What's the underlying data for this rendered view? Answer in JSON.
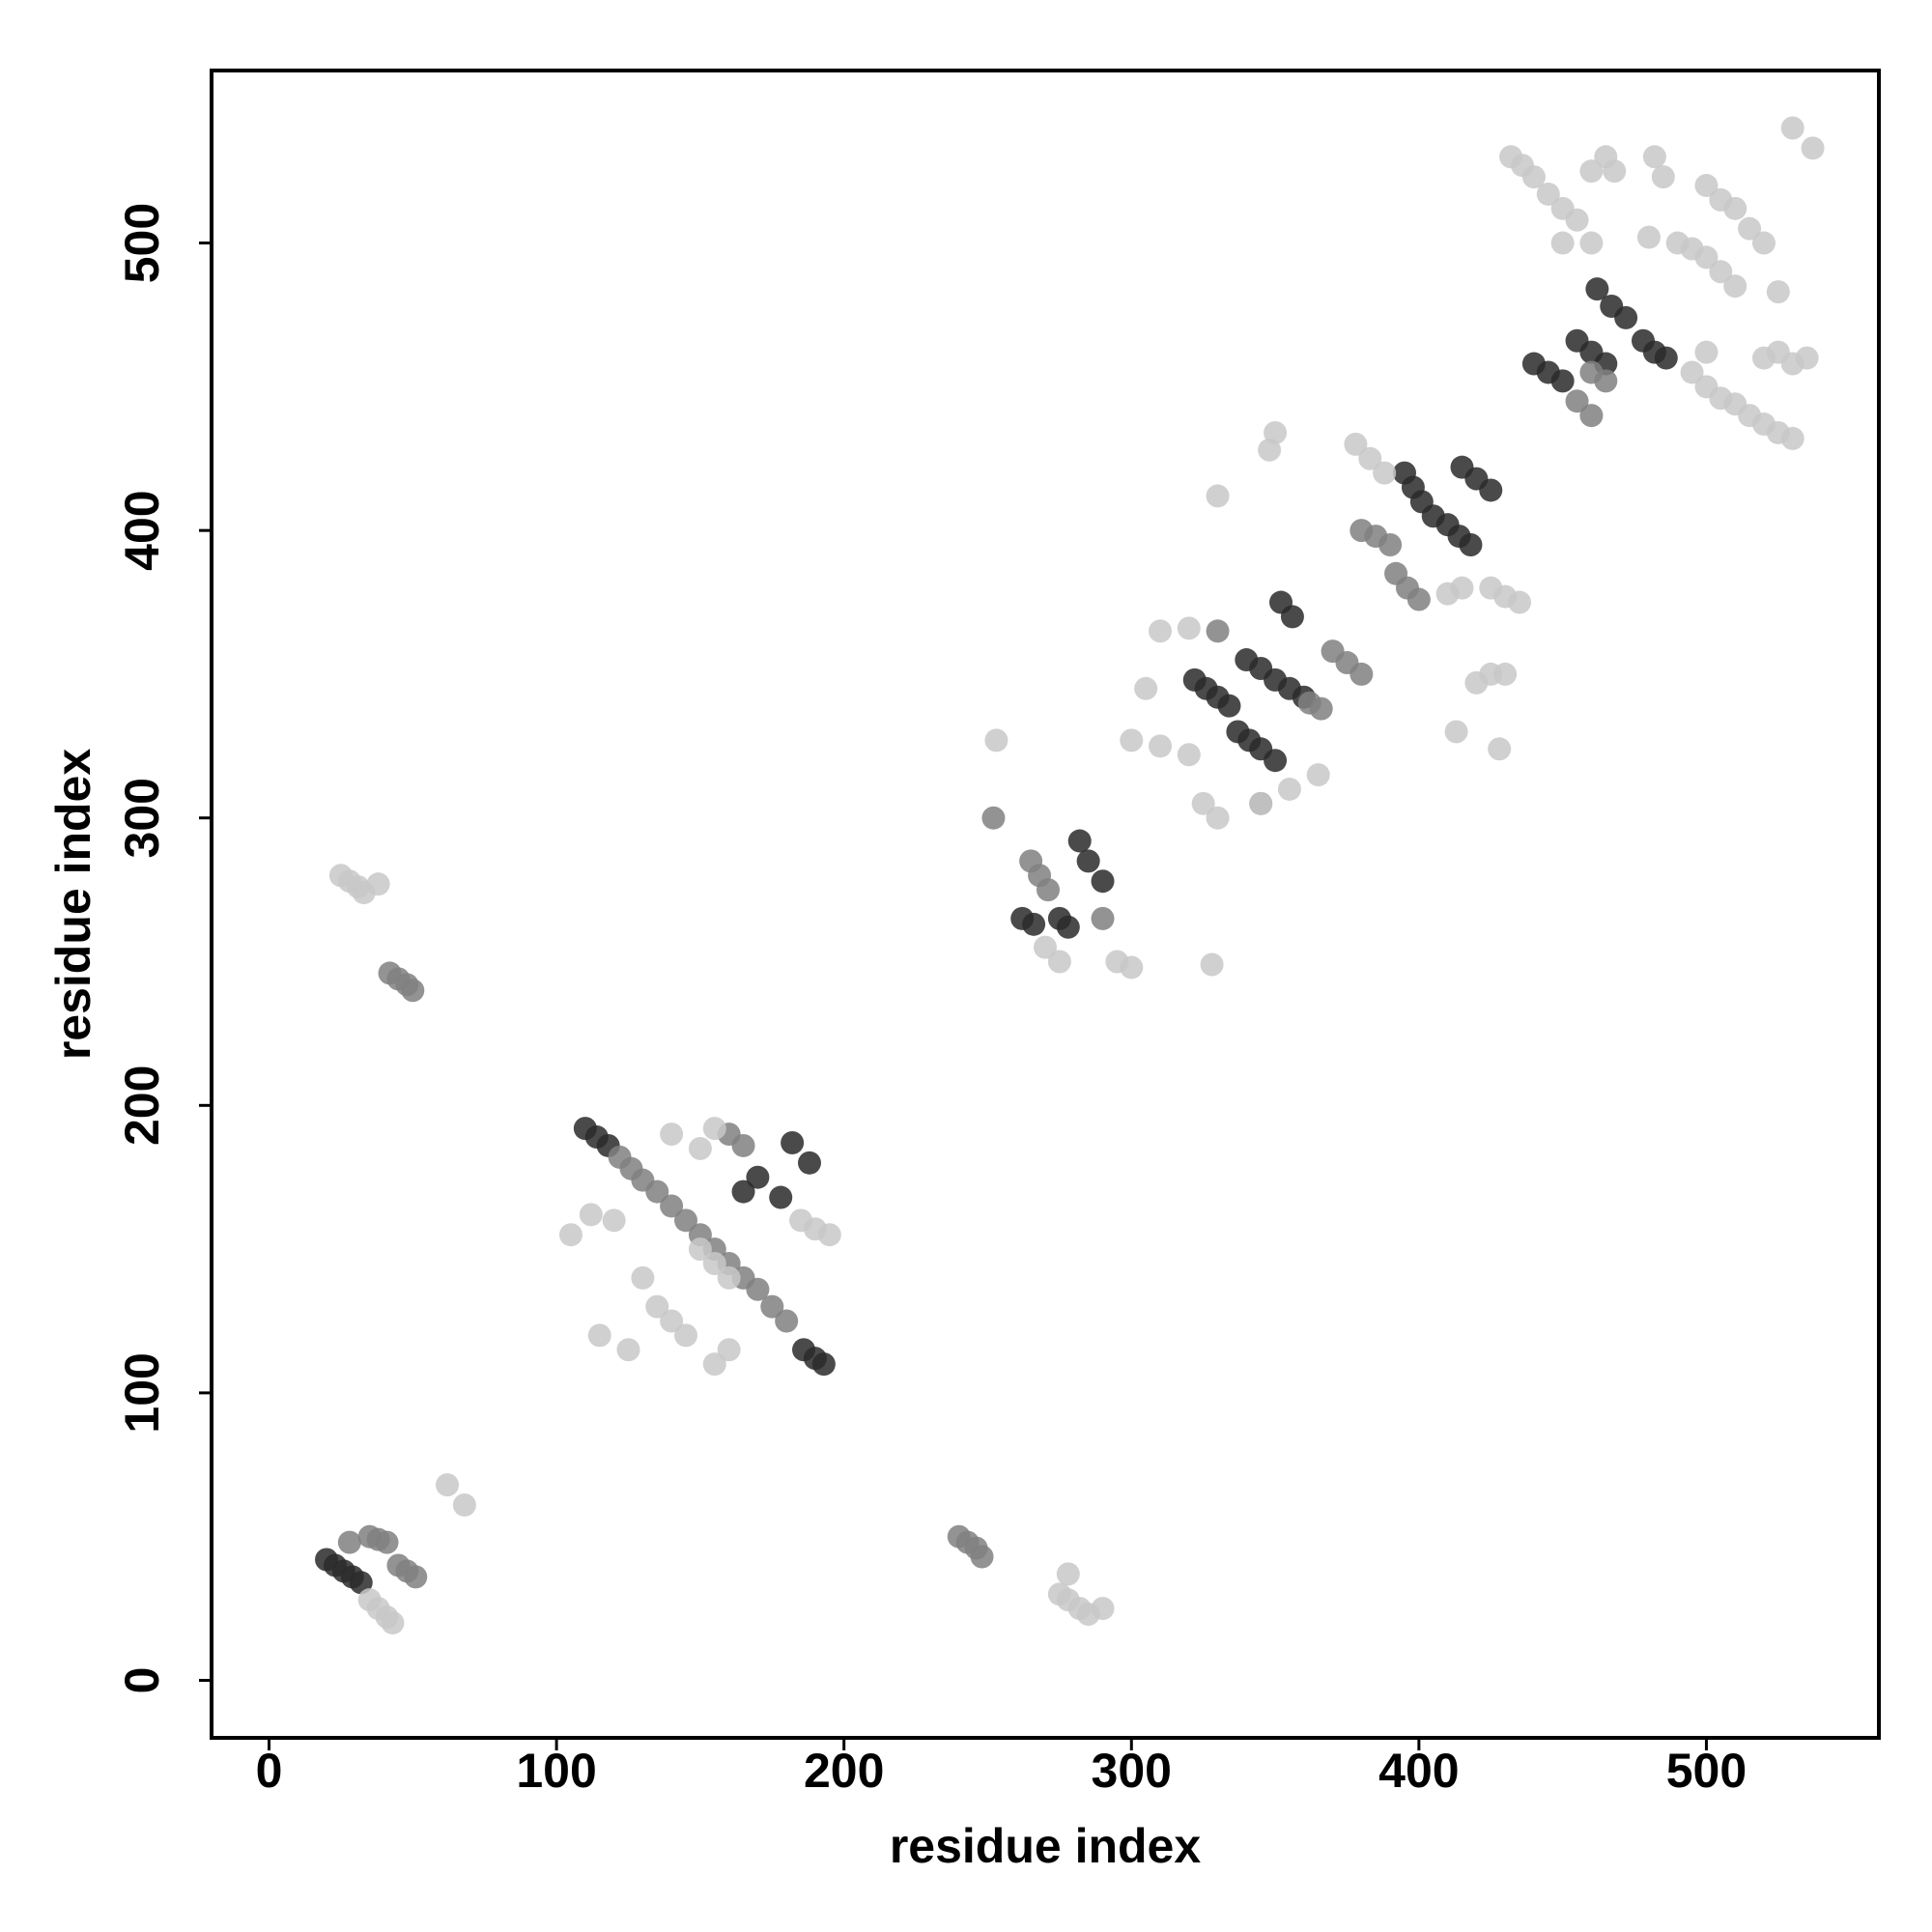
{
  "chart_data": {
    "type": "scatter",
    "xlabel": "residue index",
    "ylabel": "residue index",
    "xlim": [
      -20,
      560
    ],
    "ylim": [
      -20,
      560
    ],
    "xticks": [
      0,
      100,
      200,
      300,
      400,
      500
    ],
    "yticks": [
      0,
      100,
      200,
      300,
      400,
      500
    ],
    "series": [
      {
        "color": "#2a2a2a",
        "x": [
          20,
          23,
          26,
          29,
          32,
          110,
          114,
          118,
          186,
          190,
          193,
          165,
          170,
          178,
          182,
          188,
          262,
          266,
          275,
          278,
          282,
          285,
          290,
          322,
          326,
          330,
          334,
          337,
          341,
          345,
          350,
          340,
          345,
          350,
          355,
          360,
          352,
          356,
          395,
          398,
          401,
          405,
          410,
          414,
          418,
          415,
          420,
          425,
          440,
          445,
          450,
          455,
          460,
          465,
          462,
          467,
          472,
          478,
          482,
          486
        ],
        "y": [
          42,
          40,
          38,
          36,
          34,
          192,
          189,
          186,
          115,
          112,
          110,
          170,
          175,
          168,
          187,
          180,
          265,
          263,
          265,
          262,
          292,
          285,
          278,
          348,
          345,
          342,
          339,
          330,
          327,
          324,
          320,
          355,
          352,
          348,
          345,
          342,
          375,
          370,
          420,
          415,
          410,
          405,
          402,
          398,
          395,
          422,
          418,
          414,
          458,
          455,
          452,
          466,
          462,
          458,
          484,
          478,
          474,
          466,
          462,
          460
        ]
      },
      {
        "color": "#808080",
        "x": [
          35,
          38,
          41,
          45,
          48,
          51,
          28,
          42,
          45,
          48,
          50,
          122,
          126,
          130,
          135,
          140,
          145,
          150,
          155,
          160,
          165,
          170,
          175,
          180,
          160,
          165,
          240,
          243,
          246,
          248,
          252,
          265,
          268,
          271,
          290,
          362,
          366,
          370,
          375,
          380,
          330,
          345,
          380,
          385,
          390,
          392,
          396,
          400,
          455,
          460,
          460,
          465
        ],
        "y": [
          50,
          49,
          48,
          40,
          38,
          36,
          48,
          246,
          244,
          242,
          240,
          182,
          178,
          174,
          170,
          165,
          160,
          155,
          150,
          145,
          140,
          136,
          130,
          125,
          190,
          186,
          50,
          48,
          46,
          43,
          300,
          285,
          280,
          275,
          265,
          340,
          338,
          358,
          354,
          350,
          365,
          305,
          400,
          398,
          395,
          385,
          380,
          376,
          445,
          440,
          455,
          452
        ]
      },
      {
        "color": "#c8c8c8",
        "x": [
          35,
          38,
          41,
          43,
          25,
          28,
          31,
          33,
          38,
          62,
          68,
          120,
          115,
          125,
          130,
          135,
          140,
          145,
          150,
          155,
          160,
          155,
          160,
          140,
          150,
          155,
          185,
          190,
          195,
          105,
          112,
          275,
          278,
          282,
          285,
          278,
          290,
          270,
          275,
          295,
          300,
          253,
          310,
          320,
          305,
          300,
          310,
          320,
          325,
          330,
          345,
          355,
          365,
          328,
          330,
          348,
          350,
          378,
          383,
          388,
          425,
          430,
          435,
          420,
          425,
          430,
          413,
          428,
          410,
          415,
          432,
          436,
          440,
          445,
          450,
          455,
          460,
          465,
          468,
          450,
          460,
          482,
          485,
          490,
          495,
          500,
          505,
          510,
          480,
          500,
          505,
          510,
          515,
          520,
          500,
          505,
          510,
          515,
          520,
          525,
          530,
          520,
          525,
          530,
          535,
          530,
          537,
          525,
          495,
          500
        ],
        "y": [
          28,
          25,
          22,
          20,
          280,
          278,
          276,
          274,
          277,
          68,
          61,
          160,
          120,
          115,
          140,
          130,
          125,
          120,
          150,
          145,
          140,
          110,
          115,
          190,
          185,
          192,
          160,
          157,
          155,
          155,
          162,
          30,
          28,
          25,
          23,
          37,
          25,
          255,
          250,
          250,
          248,
          327,
          365,
          366,
          345,
          327,
          325,
          322,
          305,
          300,
          305,
          310,
          315,
          249,
          412,
          428,
          434,
          430,
          425,
          420,
          380,
          377,
          375,
          347,
          350,
          350,
          330,
          324,
          378,
          380,
          530,
          527,
          523,
          517,
          512,
          508,
          525,
          530,
          525,
          500,
          500,
          530,
          523,
          500,
          498,
          495,
          490,
          485,
          502,
          520,
          515,
          512,
          505,
          500,
          450,
          446,
          444,
          440,
          437,
          434,
          432,
          460,
          462,
          458,
          460,
          540,
          533,
          483,
          455,
          462
        ]
      }
    ]
  }
}
